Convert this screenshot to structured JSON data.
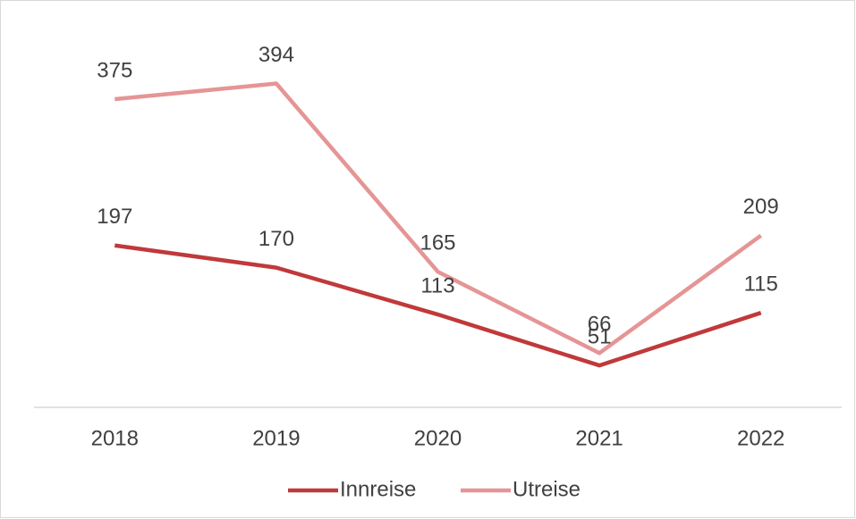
{
  "chart_data": {
    "type": "line",
    "categories": [
      "2018",
      "2019",
      "2020",
      "2021",
      "2022"
    ],
    "series": [
      {
        "name": "Innreise",
        "color": "#c0393b",
        "values": [
          197,
          170,
          113,
          51,
          115
        ]
      },
      {
        "name": "Utreise",
        "color": "#e59595",
        "values": [
          375,
          394,
          165,
          66,
          209
        ]
      }
    ],
    "ylim": [
      0,
      450
    ],
    "legend": "bottom",
    "data_labels": true
  }
}
